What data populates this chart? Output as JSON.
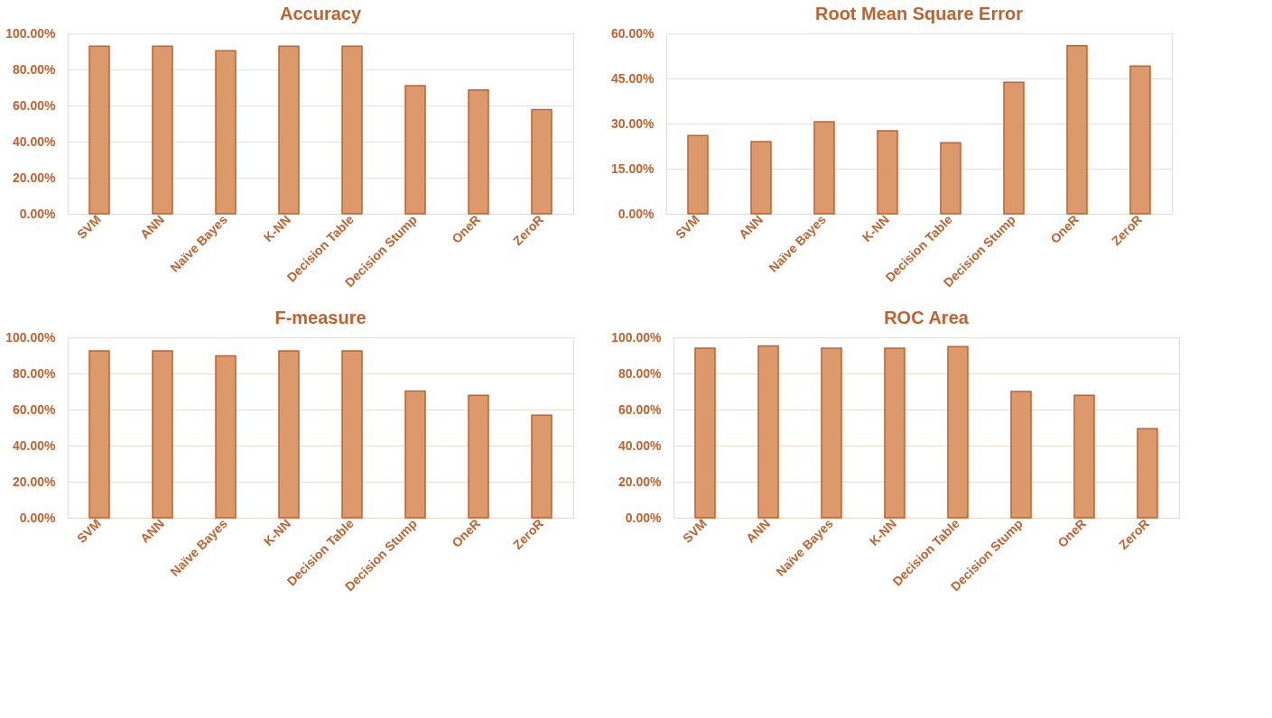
{
  "chart_data": [
    {
      "type": "bar",
      "title": "Accuracy",
      "categories": [
        "SVM",
        "ANN",
        "Naïve Bayes",
        "K-NN",
        "Decision Table",
        "Decision Stump",
        "OneR",
        "ZeroR"
      ],
      "values": [
        92.9,
        92.9,
        90.4,
        92.9,
        92.9,
        71,
        68.6,
        57.8
      ],
      "color": "#dc9a6c",
      "ylim": [
        0,
        100
      ],
      "yticks": [
        {
          "value": 0,
          "label": "0.00%"
        },
        {
          "value": 20,
          "label": "20.00%"
        },
        {
          "value": 40,
          "label": "40.00%"
        },
        {
          "value": 60,
          "label": "60.00%"
        },
        {
          "value": 80,
          "label": "80.00%"
        },
        {
          "value": 100,
          "label": "100.00%"
        }
      ],
      "grid": "y"
    },
    {
      "type": "bar",
      "title": "Root Mean Square Error",
      "categories": [
        "SVM",
        "ANN",
        "Naïve Bayes",
        "K-NN",
        "Decision Table",
        "Decision Stump",
        "OneR",
        "ZeroR"
      ],
      "values": [
        26,
        24,
        30.6,
        27.6,
        23.6,
        43.7,
        55.9,
        49.1
      ],
      "color": "#dc9a6c",
      "ylim": [
        0,
        60
      ],
      "yticks": [
        {
          "value": 0,
          "label": "0.00%"
        },
        {
          "value": 15,
          "label": "15.00%"
        },
        {
          "value": 30,
          "label": "30.00%"
        },
        {
          "value": 45,
          "label": "45.00%"
        },
        {
          "value": 60,
          "label": "60.00%"
        }
      ],
      "grid": "y"
    },
    {
      "type": "bar",
      "title": "F-measure",
      "categories": [
        "SVM",
        "ANN",
        "Naïve Bayes",
        "K-NN",
        "Decision Table",
        "Decision Stump",
        "OneR",
        "ZeroR"
      ],
      "values": [
        92.5,
        92.5,
        89.7,
        92.5,
        92.5,
        70.2,
        67.9,
        56.9
      ],
      "color": "#dc9a6c",
      "ylim": [
        0,
        100
      ],
      "yticks": [
        {
          "value": 0,
          "label": "0.00%"
        },
        {
          "value": 20,
          "label": "20.00%"
        },
        {
          "value": 40,
          "label": "40.00%"
        },
        {
          "value": 60,
          "label": "60.00%"
        },
        {
          "value": 80,
          "label": "80.00%"
        },
        {
          "value": 100,
          "label": "100.00%"
        }
      ],
      "grid": "y"
    },
    {
      "type": "bar",
      "title": "ROC Area",
      "categories": [
        "SVM",
        "ANN",
        "Naïve Bayes",
        "K-NN",
        "Decision Table",
        "Decision Stump",
        "OneR",
        "ZeroR"
      ],
      "values": [
        94,
        95.2,
        94,
        94,
        94.9,
        70,
        67.9,
        49.4
      ],
      "color": "#dc9a6c",
      "ylim": [
        0,
        100
      ],
      "yticks": [
        {
          "value": 0,
          "label": "0.00%"
        },
        {
          "value": 20,
          "label": "20.00%"
        },
        {
          "value": 40,
          "label": "40.00%"
        },
        {
          "value": 60,
          "label": "60.00%"
        },
        {
          "value": 80,
          "label": "80.00%"
        },
        {
          "value": 100,
          "label": "100.00%"
        }
      ],
      "grid": "y"
    }
  ]
}
